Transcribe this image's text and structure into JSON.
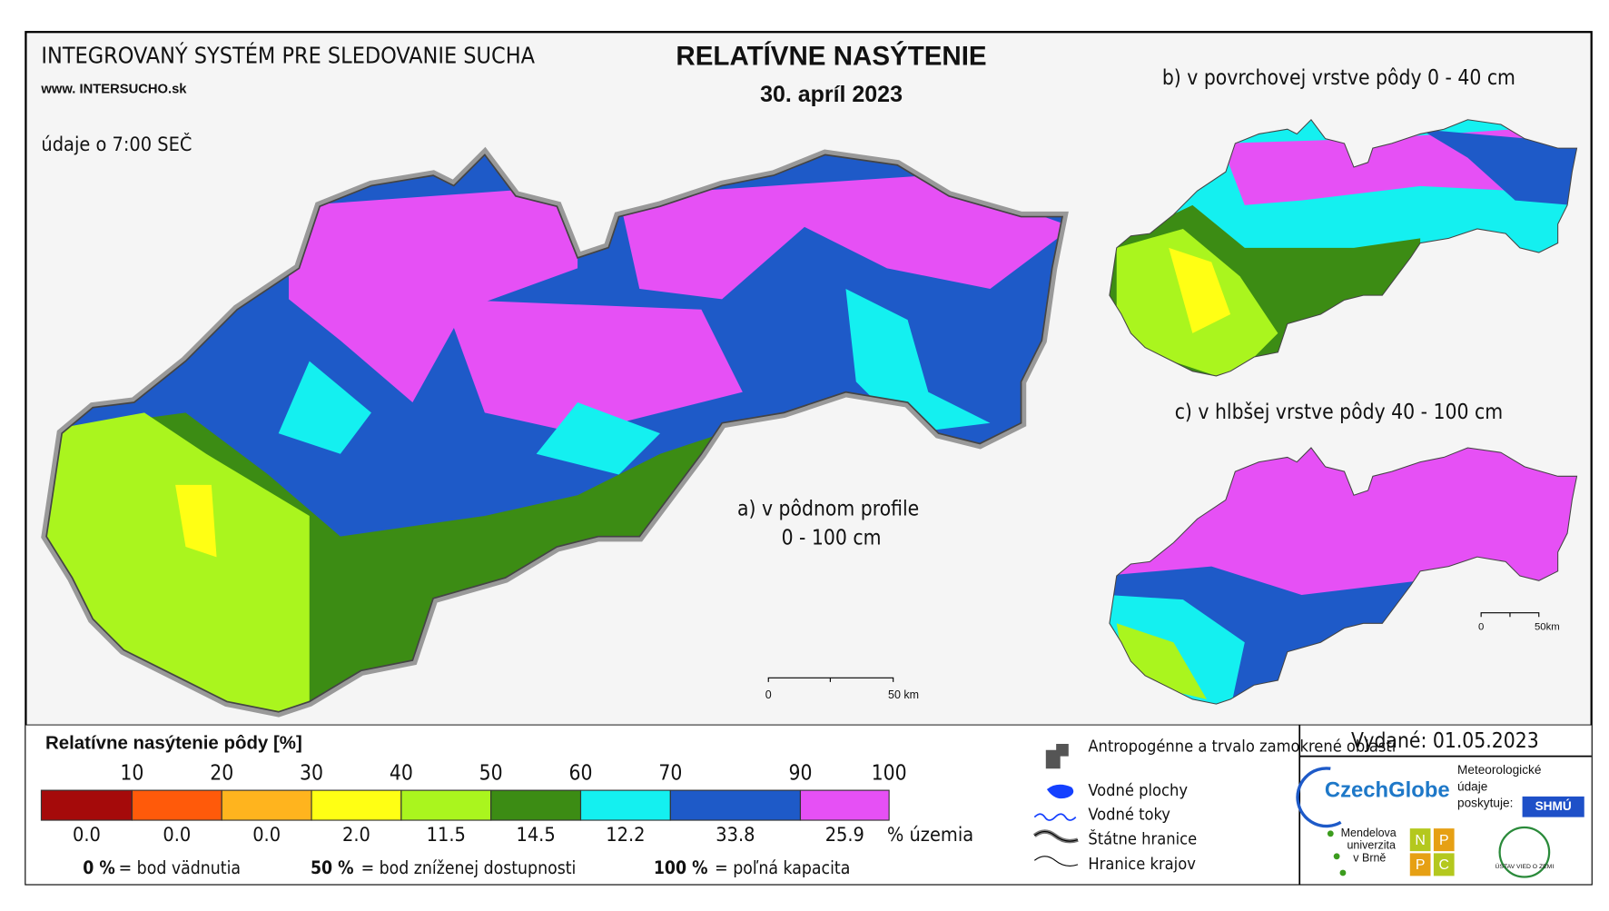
{
  "header": {
    "system": "INTEGROVANÝ SYSTÉM PRE SLEDOVANIE SUCHA",
    "web": "www. INTERSUCHO.sk",
    "time": "údaje o 7:00 SEČ",
    "title": "RELATÍVNE NASÝTENIE",
    "date": "30. apríl 2023"
  },
  "maps": {
    "a": {
      "label": [
        "a) v pôdnom profile",
        "0 - 100 cm"
      ],
      "scale": [
        "0",
        "50 km"
      ]
    },
    "b": {
      "label": "b) v povrchovej vrstve pôdy 0 - 40 cm"
    },
    "c": {
      "label": "c) v hlbšej vrstve pôdy 40 - 100 cm",
      "scale": [
        "0",
        "50km"
      ]
    }
  },
  "legend": {
    "title": "Relatívne nasýtenie pôdy [%]",
    "thresholds": [
      "10",
      "20",
      "30",
      "40",
      "50",
      "60",
      "70",
      "90",
      "100"
    ],
    "colors": [
      "#a50a0a",
      "#ff5a0a",
      "#ffb41e",
      "#ffff14",
      "#aaf51e",
      "#3c8c14",
      "#14f0f0",
      "#1e5ac8",
      "#e650f5"
    ],
    "shares": [
      "0.0",
      "0.0",
      "0.0",
      "2.0",
      "11.5",
      "14.5",
      "12.2",
      "33.8",
      "25.9"
    ],
    "unit": "% územia",
    "notes": [
      {
        "key": "0 %",
        "text": "= bod vädnutia"
      },
      {
        "key": "50 %",
        "text": "= bod zníženej dostupnosti"
      },
      {
        "key": "100 %",
        "text": "= poľná kapacita"
      }
    ]
  },
  "symbols": [
    "Antropogénne a trvalo zamokrené oblasti",
    "Vodné plochy",
    "Vodné toky",
    "Štátne hranice",
    "Hranice krajov"
  ],
  "issued": "Vydané: 01.05.2023",
  "logos": {
    "czechglobe": "CzechGlobe",
    "meteo": [
      "Meteorologické",
      "údaje",
      "poskytuje:"
    ],
    "shmu": "SHMÚ",
    "mendel": [
      "Mendelova",
      "univerzita",
      "v Brně"
    ],
    "nppc": [
      "N",
      "P",
      "P",
      "C"
    ],
    "uvz": "ÚSTAV VIED O ZEMI"
  }
}
